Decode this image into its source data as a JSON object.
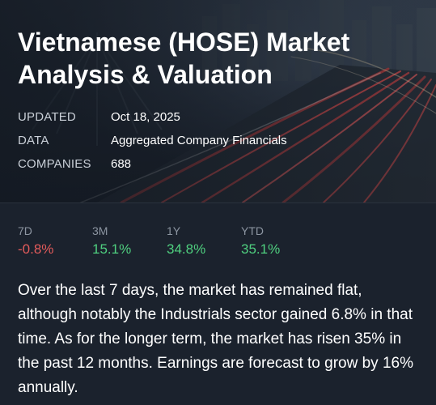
{
  "header": {
    "title": "Vietnamese (HOSE) Market Analysis & Valuation"
  },
  "meta": [
    {
      "key": "UPDATED",
      "value": "Oct 18, 2025"
    },
    {
      "key": "DATA",
      "value": "Aggregated Company Financials"
    },
    {
      "key": "COMPANIES",
      "value": "688"
    }
  ],
  "returns": [
    {
      "period": "7D",
      "value": "-0.8%",
      "trend": "negative"
    },
    {
      "period": "3M",
      "value": "15.1%",
      "trend": "positive"
    },
    {
      "period": "1Y",
      "value": "34.8%",
      "trend": "positive"
    },
    {
      "period": "YTD",
      "value": "35.1%",
      "trend": "positive"
    }
  ],
  "summary": "Over the last 7 days, the market has remained flat, although notably the Industrials sector gained 6.8% in that time. As for the longer term, the market has risen 35% in the past 12 months. Earnings are forecast to grow by 16% annually.",
  "colors": {
    "background": "#1b222d",
    "negative": "#e35b5b",
    "positive": "#4fcf7f",
    "muted": "#8c95a1"
  }
}
